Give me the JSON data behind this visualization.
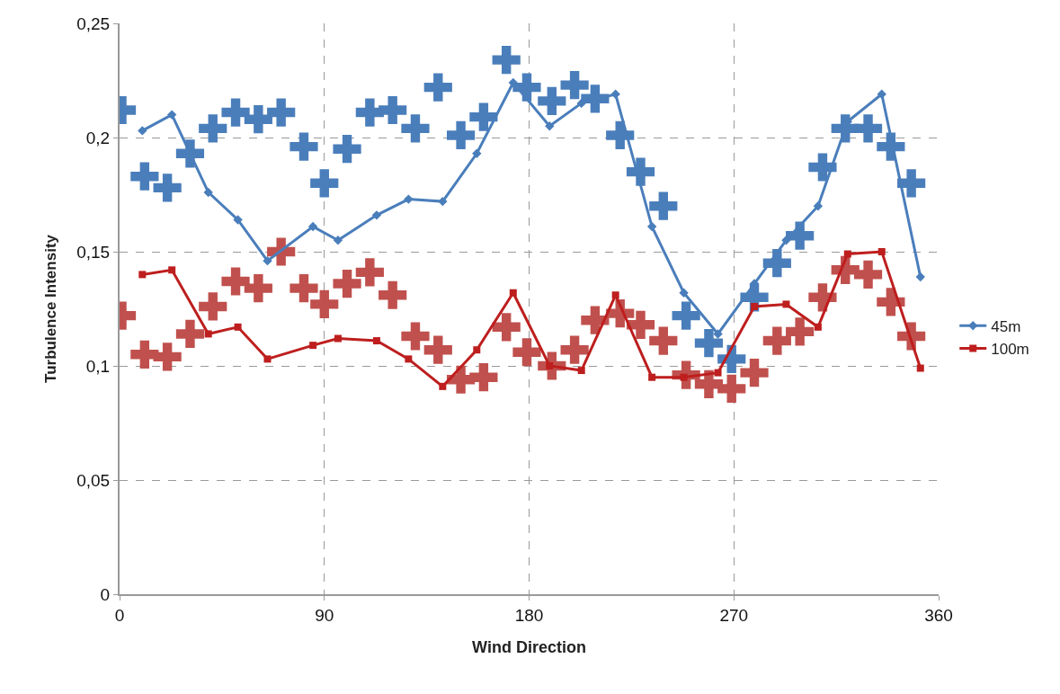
{
  "chart_data": {
    "type": "line",
    "xlabel": "Wind Direction",
    "ylabel": "Turbulence Intensity",
    "xlim": [
      0,
      360
    ],
    "xticks": [
      0,
      90,
      180,
      270,
      360
    ],
    "ylim": [
      0,
      0.25
    ],
    "yticks": [
      {
        "value": 0,
        "label": "0"
      },
      {
        "value": 0.05,
        "label": "0,05"
      },
      {
        "value": 0.1,
        "label": "0,1"
      },
      {
        "value": 0.15,
        "label": "0,15"
      },
      {
        "value": 0.2,
        "label": "0,2"
      },
      {
        "value": 0.25,
        "label": "0,25"
      }
    ],
    "grid": true,
    "legend": "right",
    "line_style": "solid",
    "series": [
      {
        "name": "45m",
        "color": "#4a7ebb",
        "marker": "diamond",
        "x": [
          10,
          23,
          39,
          52,
          65,
          85,
          96,
          113,
          127,
          142,
          157,
          173,
          189,
          203,
          218,
          234,
          248,
          263,
          279,
          293,
          307,
          320,
          335,
          352
        ],
        "values": [
          0.203,
          0.21,
          0.176,
          0.164,
          0.146,
          0.161,
          0.155,
          0.166,
          0.173,
          0.172,
          0.193,
          0.224,
          0.205,
          0.215,
          0.219,
          0.161,
          0.132,
          0.114,
          0.136,
          0.155,
          0.17,
          0.207,
          0.219,
          0.139
        ]
      },
      {
        "name": "100m",
        "color": "#be1e1e",
        "marker": "square",
        "x": [
          10,
          23,
          39,
          52,
          65,
          85,
          96,
          113,
          127,
          142,
          157,
          173,
          189,
          203,
          218,
          234,
          248,
          263,
          279,
          293,
          307,
          320,
          335,
          352
        ],
        "values": [
          0.14,
          0.142,
          0.114,
          0.117,
          0.103,
          0.109,
          0.112,
          0.111,
          0.103,
          0.091,
          0.107,
          0.132,
          0.1,
          0.098,
          0.131,
          0.095,
          0.095,
          0.097,
          0.126,
          0.127,
          0.117,
          0.149,
          0.15,
          0.099
        ]
      },
      {
        "type": "scatter",
        "color": "#4a7ebb",
        "marker": "cross",
        "x": [
          1,
          11,
          21,
          31,
          41,
          51,
          61,
          71,
          81,
          90,
          100,
          110,
          120,
          130,
          140,
          150,
          160,
          170,
          179,
          190,
          200,
          209,
          220,
          229,
          239,
          249,
          259,
          269,
          279,
          289,
          299,
          309,
          319,
          329,
          339,
          348
        ],
        "values": [
          0.212,
          0.183,
          0.178,
          0.193,
          0.204,
          0.211,
          0.208,
          0.211,
          0.196,
          0.18,
          0.195,
          0.211,
          0.212,
          0.204,
          0.222,
          0.201,
          0.209,
          0.234,
          0.222,
          0.216,
          0.223,
          0.217,
          0.201,
          0.185,
          0.17,
          0.122,
          0.11,
          0.103,
          0.13,
          0.145,
          0.157,
          0.187,
          0.204,
          0.204,
          0.196,
          0.18
        ]
      },
      {
        "type": "scatter",
        "color": "#c0504d",
        "marker": "cross",
        "x": [
          1,
          11,
          21,
          31,
          41,
          51,
          61,
          71,
          81,
          90,
          100,
          110,
          120,
          130,
          140,
          150,
          160,
          170,
          179,
          190,
          200,
          209,
          220,
          229,
          239,
          249,
          259,
          269,
          279,
          289,
          299,
          309,
          319,
          329,
          339,
          348
        ],
        "values": [
          0.122,
          0.105,
          0.104,
          0.114,
          0.126,
          0.137,
          0.134,
          0.15,
          0.134,
          0.127,
          0.136,
          0.141,
          0.131,
          0.113,
          0.107,
          0.094,
          0.095,
          0.117,
          0.106,
          0.1,
          0.107,
          0.12,
          0.123,
          0.118,
          0.111,
          0.096,
          0.092,
          0.09,
          0.097,
          0.111,
          0.115,
          0.13,
          0.142,
          0.14,
          0.128,
          0.113
        ]
      }
    ]
  }
}
